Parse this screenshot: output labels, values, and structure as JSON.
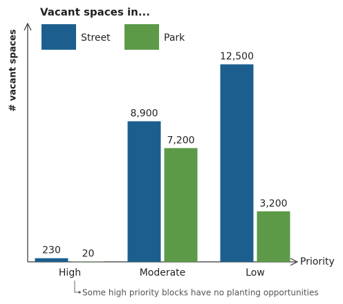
{
  "chart_data": {
    "type": "bar",
    "title": "Vacant spaces in...",
    "ylabel": "# vacant spaces",
    "xlabel": "Priority",
    "annotation": "Some high priority blocks have no planting opportunities",
    "categories": [
      "High",
      "Moderate",
      "Low"
    ],
    "series": [
      {
        "name": "Street",
        "color": "#1c5f8e",
        "values": [
          230,
          8900,
          12500
        ],
        "value_labels": [
          "230",
          "8,900",
          "12,500"
        ]
      },
      {
        "name": "Park",
        "color": "#5c9a47",
        "values": [
          20,
          7200,
          3200
        ],
        "value_labels": [
          "20",
          "7,200",
          "3,200"
        ]
      }
    ],
    "ylim": [
      0,
      15000
    ],
    "grid": false
  }
}
